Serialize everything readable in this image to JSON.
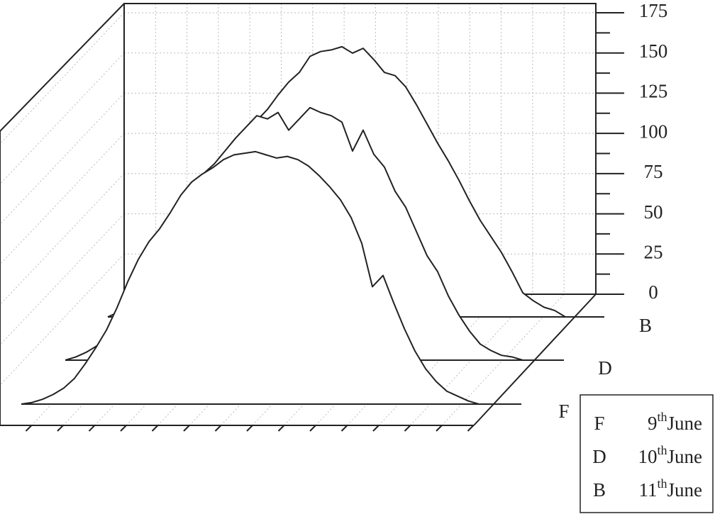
{
  "chart_data": {
    "type": "waterfall3d",
    "categories": [
      null,
      null,
      null,
      null,
      null,
      null,
      null,
      null,
      null,
      null,
      null,
      null,
      null,
      null,
      null,
      null,
      null,
      null,
      null,
      null,
      null,
      null,
      null,
      null,
      null,
      null,
      null,
      null,
      null,
      null,
      null,
      null,
      null,
      null,
      null,
      null,
      null,
      null,
      null,
      null,
      null,
      null,
      null,
      null
    ],
    "series": [
      {
        "name": "F",
        "day": "9",
        "ordinal": "th",
        "month": "June",
        "color": "#222222",
        "values": [
          0,
          1,
          3,
          6,
          10,
          16,
          25,
          35,
          46,
          60,
          76,
          90,
          101,
          109,
          119,
          130,
          138,
          143,
          147,
          152,
          155,
          156,
          157,
          155,
          153,
          154,
          152,
          148,
          142,
          135,
          127,
          116,
          100,
          73,
          80,
          63,
          47,
          33,
          22,
          14,
          8,
          5,
          2,
          0
        ]
      },
      {
        "name": "D",
        "day": "10",
        "ordinal": "th",
        "month": "June",
        "color": "#222222",
        "values": [
          0,
          2,
          5,
          9,
          14,
          22,
          32,
          45,
          60,
          75,
          85,
          100,
          110,
          116,
          122,
          130,
          138,
          145,
          152,
          150,
          154,
          143,
          150,
          157,
          154,
          152,
          148,
          130,
          143,
          128,
          120,
          105,
          95,
          80,
          65,
          55,
          40,
          28,
          18,
          10,
          6,
          3,
          2,
          0
        ]
      },
      {
        "name": "B",
        "day": "11",
        "ordinal": "th",
        "month": "June",
        "color": "#222222",
        "values": [
          0,
          3,
          8,
          15,
          24,
          35,
          48,
          58,
          70,
          78,
          83,
          92,
          100,
          112,
          122,
          129,
          138,
          146,
          152,
          162,
          165,
          166,
          168,
          164,
          167,
          160,
          152,
          150,
          143,
          132,
          120,
          108,
          97,
          85,
          72,
          60,
          50,
          40,
          28,
          15,
          10,
          6,
          4,
          0
        ]
      }
    ],
    "ylim": [
      0,
      175
    ],
    "yticks": [
      0,
      25,
      50,
      75,
      100,
      125,
      150,
      175
    ],
    "grid": true
  }
}
